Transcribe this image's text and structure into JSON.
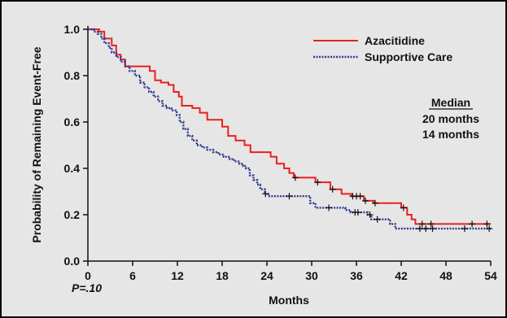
{
  "chart_data": {
    "type": "line",
    "xlabel": "Months",
    "ylabel": "Probability of Remaining Event-Free",
    "xlim": [
      0,
      54
    ],
    "ylim": [
      0,
      1.0
    ],
    "x_ticks": [
      "0",
      "6",
      "12",
      "18",
      "24",
      "30",
      "36",
      "42",
      "48",
      "54"
    ],
    "y_ticks": [
      "0.0",
      "0.2",
      "0.4",
      "0.6",
      "0.8",
      "1.0"
    ],
    "grid": false,
    "legend_position": "top-right",
    "series": [
      {
        "name": "Azacitidine",
        "color": "#e8211f",
        "style": "solid",
        "step": [
          [
            0,
            1.0
          ],
          [
            1.5,
            0.99
          ],
          [
            2.2,
            0.96
          ],
          [
            3.2,
            0.93
          ],
          [
            3.8,
            0.89
          ],
          [
            4.4,
            0.87
          ],
          [
            5.0,
            0.84
          ],
          [
            8.3,
            0.82
          ],
          [
            9.0,
            0.78
          ],
          [
            9.8,
            0.77
          ],
          [
            10.8,
            0.76
          ],
          [
            11.5,
            0.73
          ],
          [
            12.2,
            0.71
          ],
          [
            12.6,
            0.67
          ],
          [
            14.0,
            0.66
          ],
          [
            15.0,
            0.64
          ],
          [
            16.0,
            0.61
          ],
          [
            18.0,
            0.58
          ],
          [
            18.8,
            0.54
          ],
          [
            19.8,
            0.52
          ],
          [
            21.0,
            0.5
          ],
          [
            21.8,
            0.47
          ],
          [
            24.5,
            0.45
          ],
          [
            25.3,
            0.42
          ],
          [
            26.3,
            0.4
          ],
          [
            27.0,
            0.38
          ],
          [
            27.6,
            0.36
          ],
          [
            30.5,
            0.34
          ],
          [
            32.5,
            0.31
          ],
          [
            34.0,
            0.29
          ],
          [
            35.3,
            0.28
          ],
          [
            37.0,
            0.26
          ],
          [
            38.3,
            0.25
          ],
          [
            42.0,
            0.23
          ],
          [
            42.8,
            0.2
          ],
          [
            43.4,
            0.18
          ],
          [
            43.9,
            0.16
          ],
          [
            54,
            0.16
          ]
        ],
        "censor_x": [
          27.8,
          30.8,
          32.8,
          35.5,
          36.0,
          36.5,
          37.2,
          38.5,
          42.3,
          44.8,
          46.0,
          51.5,
          53.5
        ]
      },
      {
        "name": "Supportive Care",
        "color": "#2d3b8f",
        "style": "dotted",
        "step": [
          [
            0,
            1.0
          ],
          [
            0.8,
            0.99
          ],
          [
            1.3,
            0.98
          ],
          [
            1.8,
            0.96
          ],
          [
            2.2,
            0.94
          ],
          [
            2.8,
            0.92
          ],
          [
            3.2,
            0.9
          ],
          [
            3.8,
            0.88
          ],
          [
            4.4,
            0.86
          ],
          [
            5.0,
            0.84
          ],
          [
            5.6,
            0.82
          ],
          [
            6.3,
            0.8
          ],
          [
            7.0,
            0.77
          ],
          [
            7.6,
            0.75
          ],
          [
            8.2,
            0.73
          ],
          [
            8.8,
            0.71
          ],
          [
            9.4,
            0.69
          ],
          [
            10.0,
            0.67
          ],
          [
            10.6,
            0.66
          ],
          [
            11.2,
            0.65
          ],
          [
            11.9,
            0.63
          ],
          [
            12.3,
            0.6
          ],
          [
            12.8,
            0.57
          ],
          [
            13.4,
            0.54
          ],
          [
            14.0,
            0.52
          ],
          [
            14.6,
            0.5
          ],
          [
            15.3,
            0.49
          ],
          [
            16.0,
            0.48
          ],
          [
            16.8,
            0.47
          ],
          [
            17.5,
            0.46
          ],
          [
            18.2,
            0.45
          ],
          [
            19.0,
            0.44
          ],
          [
            19.6,
            0.43
          ],
          [
            20.3,
            0.42
          ],
          [
            20.8,
            0.41
          ],
          [
            21.2,
            0.4
          ],
          [
            21.7,
            0.37
          ],
          [
            22.2,
            0.35
          ],
          [
            22.7,
            0.33
          ],
          [
            23.1,
            0.31
          ],
          [
            23.7,
            0.29
          ],
          [
            24.2,
            0.28
          ],
          [
            29.8,
            0.25
          ],
          [
            30.5,
            0.23
          ],
          [
            34.5,
            0.22
          ],
          [
            35.2,
            0.21
          ],
          [
            37.5,
            0.2
          ],
          [
            38.0,
            0.18
          ],
          [
            39.0,
            0.18
          ],
          [
            40.5,
            0.16
          ],
          [
            41.2,
            0.14
          ],
          [
            54,
            0.14
          ]
        ],
        "censor_x": [
          23.8,
          27.0,
          32.3,
          35.8,
          36.2,
          37.8,
          38.8,
          44.5,
          45.3,
          46.2,
          50.5,
          53.8
        ]
      }
    ],
    "median_header": "Median",
    "median_values": [
      "20 months",
      "14 months"
    ],
    "p_value": "P=.10"
  }
}
